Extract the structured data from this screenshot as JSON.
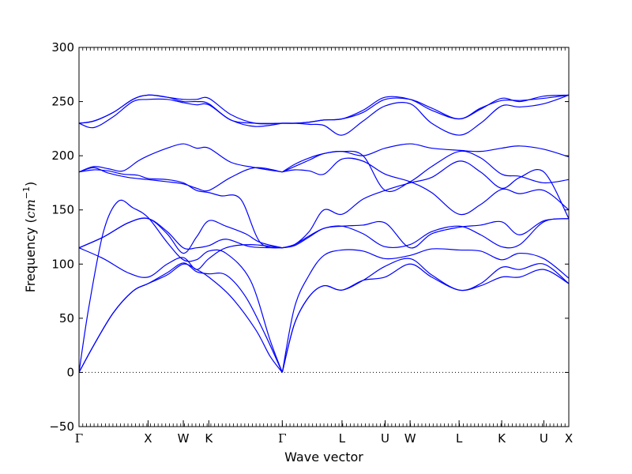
{
  "chart_data": {
    "type": "line",
    "title": "",
    "xlabel": "Wave vector",
    "ylabel": "Frequency (cm⁻¹)",
    "ylabel_main": "Frequency (",
    "ylabel_unit": "cm",
    "ylabel_exp": "−1",
    "ylabel_close": ")",
    "ylim": [
      -50,
      300
    ],
    "yticks": [
      -50,
      0,
      50,
      100,
      150,
      200,
      250,
      300
    ],
    "xlim": [
      0,
      1
    ],
    "high_symmetry_points": [
      {
        "label": "Γ",
        "x": 0.0
      },
      {
        "label": "X",
        "x": 0.141
      },
      {
        "label": "W",
        "x": 0.213
      },
      {
        "label": "K",
        "x": 0.265
      },
      {
        "label": "Γ",
        "x": 0.415
      },
      {
        "label": "L",
        "x": 0.537
      },
      {
        "label": "U",
        "x": 0.625
      },
      {
        "label": "W",
        "x": 0.676
      },
      {
        "label": "L",
        "x": 0.776
      },
      {
        "label": "K",
        "x": 0.863
      },
      {
        "label": "U",
        "x": 0.949
      },
      {
        "label": "X",
        "x": 1.0
      }
    ],
    "zero_line": {
      "y": 0,
      "style": "dotted"
    },
    "grid": false,
    "legend": "none",
    "line_color": "#0000ff",
    "series": [
      {
        "x": [
          0,
          0.03,
          0.07,
          0.11,
          0.141,
          0.18,
          0.213,
          0.24,
          0.265,
          0.31,
          0.36,
          0.39,
          0.415
        ],
        "values": [
          0,
          25,
          55,
          75,
          82,
          90,
          100,
          95,
          88,
          70,
          40,
          15,
          0
        ]
      },
      {
        "x": [
          0,
          0.03,
          0.07,
          0.11,
          0.141,
          0.18,
          0.213,
          0.24,
          0.265,
          0.3,
          0.34,
          0.38,
          0.415
        ],
        "values": [
          0,
          25,
          55,
          75,
          82,
          92,
          101,
          93,
          91,
          90,
          70,
          35,
          0
        ]
      },
      {
        "x": [
          0,
          0.02,
          0.05,
          0.08,
          0.11,
          0.141,
          0.18,
          0.213,
          0.24,
          0.265,
          0.3,
          0.35,
          0.39,
          0.415
        ],
        "values": [
          0,
          60,
          130,
          158,
          152,
          143,
          120,
          104,
          104,
          112,
          110,
          85,
          30,
          0
        ]
      },
      {
        "x": [
          0,
          0.05,
          0.1,
          0.141,
          0.18,
          0.213,
          0.24,
          0.265,
          0.3,
          0.35,
          0.415
        ],
        "values": [
          115,
          105,
          92,
          88,
          100,
          106,
          95,
          105,
          115,
          118,
          115
        ]
      },
      {
        "x": [
          0,
          0.05,
          0.1,
          0.141,
          0.18,
          0.213,
          0.24,
          0.265,
          0.3,
          0.35,
          0.415
        ],
        "values": [
          115,
          125,
          138,
          142,
          130,
          115,
          115,
          117,
          123,
          116,
          115
        ]
      },
      {
        "x": [
          0,
          0.05,
          0.1,
          0.141,
          0.18,
          0.213,
          0.24,
          0.265,
          0.3,
          0.34,
          0.37,
          0.415
        ],
        "values": [
          115,
          125,
          138,
          142,
          128,
          110,
          125,
          140,
          135,
          128,
          120,
          115
        ]
      },
      {
        "x": [
          0,
          0.03,
          0.06,
          0.09,
          0.12,
          0.141,
          0.18,
          0.213,
          0.24,
          0.265,
          0.29,
          0.33,
          0.37,
          0.415
        ],
        "values": [
          185,
          187,
          186,
          183,
          182,
          179,
          178,
          175,
          168,
          166,
          163,
          160,
          120,
          115
        ]
      },
      {
        "x": [
          0,
          0.03,
          0.06,
          0.1,
          0.141,
          0.18,
          0.213,
          0.24,
          0.265,
          0.31,
          0.36,
          0.415
        ],
        "values": [
          185,
          189,
          184,
          180,
          178,
          176,
          174,
          170,
          168,
          180,
          189,
          185
        ]
      },
      {
        "x": [
          0,
          0.03,
          0.06,
          0.09,
          0.12,
          0.141,
          0.18,
          0.213,
          0.24,
          0.265,
          0.31,
          0.36,
          0.415
        ],
        "values": [
          185,
          190,
          188,
          186,
          195,
          200,
          207,
          211,
          207,
          207,
          194,
          189,
          185
        ]
      },
      {
        "x": [
          0,
          0.03,
          0.07,
          0.11,
          0.141,
          0.18,
          0.213,
          0.24,
          0.265,
          0.31,
          0.36,
          0.415
        ],
        "values": [
          230,
          232,
          240,
          252,
          256,
          254,
          252,
          252,
          253,
          238,
          230,
          230
        ]
      },
      {
        "x": [
          0,
          0.03,
          0.07,
          0.11,
          0.141,
          0.18,
          0.213,
          0.24,
          0.265,
          0.31,
          0.36,
          0.415
        ],
        "values": [
          230,
          232,
          240,
          252,
          256,
          254,
          250,
          250,
          248,
          233,
          230,
          230
        ]
      },
      {
        "x": [
          0,
          0.03,
          0.07,
          0.11,
          0.141,
          0.18,
          0.213,
          0.24,
          0.265,
          0.31,
          0.36,
          0.415
        ],
        "values": [
          230,
          226,
          236,
          250,
          252,
          252,
          249,
          247,
          247,
          233,
          227,
          230
        ]
      },
      {
        "x": [
          0.415,
          0.44,
          0.47,
          0.5,
          0.537,
          0.58,
          0.625,
          0.676,
          0.72,
          0.776,
          0.82,
          0.863,
          0.9,
          0.949,
          1.0
        ],
        "values": [
          0,
          45,
          70,
          80,
          76,
          85,
          88,
          100,
          88,
          76,
          80,
          88,
          88,
          95,
          82
        ]
      },
      {
        "x": [
          0.415,
          0.44,
          0.47,
          0.5,
          0.537,
          0.58,
          0.625,
          0.676,
          0.72,
          0.776,
          0.82,
          0.863,
          0.9,
          0.949,
          1.0
        ],
        "values": [
          0,
          45,
          70,
          80,
          76,
          85,
          98,
          105,
          90,
          76,
          82,
          97,
          95,
          100,
          82
        ]
      },
      {
        "x": [
          0.415,
          0.44,
          0.47,
          0.5,
          0.537,
          0.58,
          0.625,
          0.676,
          0.72,
          0.776,
          0.82,
          0.863,
          0.9,
          0.949,
          1.0
        ],
        "values": [
          0,
          60,
          90,
          108,
          113,
          112,
          105,
          108,
          114,
          113,
          112,
          104,
          110,
          105,
          87
        ]
      },
      {
        "x": [
          0.415,
          0.44,
          0.47,
          0.5,
          0.537,
          0.58,
          0.625,
          0.676,
          0.72,
          0.776,
          0.82,
          0.863,
          0.9,
          0.949,
          1.0
        ],
        "values": [
          115,
          118,
          130,
          150,
          146,
          160,
          168,
          175,
          180,
          195,
          185,
          170,
          180,
          185,
          142
        ]
      },
      {
        "x": [
          0.415,
          0.44,
          0.47,
          0.5,
          0.537,
          0.58,
          0.625,
          0.676,
          0.72,
          0.776,
          0.82,
          0.863,
          0.9,
          0.949,
          1.0
        ],
        "values": [
          115,
          117,
          125,
          133,
          135,
          136,
          138,
          115,
          128,
          134,
          136,
          139,
          127,
          140,
          142
        ]
      },
      {
        "x": [
          0.415,
          0.44,
          0.47,
          0.5,
          0.537,
          0.58,
          0.625,
          0.676,
          0.72,
          0.776,
          0.82,
          0.863,
          0.9,
          0.949,
          1.0
        ],
        "values": [
          115,
          118,
          126,
          133,
          135,
          128,
          116,
          118,
          130,
          135,
          127,
          116,
          118,
          139,
          142
        ]
      },
      {
        "x": [
          0.415,
          0.44,
          0.47,
          0.5,
          0.537,
          0.58,
          0.625,
          0.676,
          0.72,
          0.776,
          0.82,
          0.863,
          0.9,
          0.949,
          1.0
        ],
        "values": [
          185,
          187,
          186,
          183,
          197,
          195,
          183,
          176,
          166,
          146,
          155,
          169,
          165,
          168,
          150
        ]
      },
      {
        "x": [
          0.415,
          0.44,
          0.47,
          0.5,
          0.537,
          0.58,
          0.625,
          0.676,
          0.72,
          0.776,
          0.82,
          0.863,
          0.9,
          0.949,
          1.0
        ],
        "values": [
          185,
          192,
          198,
          202,
          204,
          200,
          168,
          176,
          190,
          204,
          198,
          183,
          181,
          175,
          178
        ]
      },
      {
        "x": [
          0.415,
          0.44,
          0.47,
          0.5,
          0.537,
          0.58,
          0.625,
          0.676,
          0.72,
          0.776,
          0.82,
          0.863,
          0.9,
          0.949,
          1.0
        ],
        "values": [
          185,
          190,
          196,
          202,
          204,
          200,
          207,
          211,
          207,
          205,
          204,
          207,
          209,
          206,
          199
        ]
      },
      {
        "x": [
          0.415,
          0.44,
          0.47,
          0.5,
          0.537,
          0.58,
          0.625,
          0.676,
          0.72,
          0.776,
          0.82,
          0.863,
          0.9,
          0.949,
          1.0
        ],
        "values": [
          230,
          230,
          229,
          228,
          219,
          232,
          246,
          248,
          230,
          219,
          230,
          246,
          245,
          248,
          256
        ]
      },
      {
        "x": [
          0.415,
          0.44,
          0.47,
          0.5,
          0.537,
          0.58,
          0.625,
          0.676,
          0.72,
          0.776,
          0.82,
          0.863,
          0.9,
          0.949,
          1.0
        ],
        "values": [
          230,
          230,
          231,
          233,
          234,
          240,
          252,
          252,
          244,
          234,
          244,
          251,
          251,
          253,
          256
        ]
      },
      {
        "x": [
          0.415,
          0.44,
          0.47,
          0.5,
          0.537,
          0.58,
          0.625,
          0.676,
          0.72,
          0.776,
          0.82,
          0.863,
          0.9,
          0.949,
          1.0
        ],
        "values": [
          230,
          230,
          231,
          233,
          234,
          242,
          254,
          252,
          242,
          234,
          243,
          253,
          250,
          255,
          256
        ]
      }
    ]
  }
}
